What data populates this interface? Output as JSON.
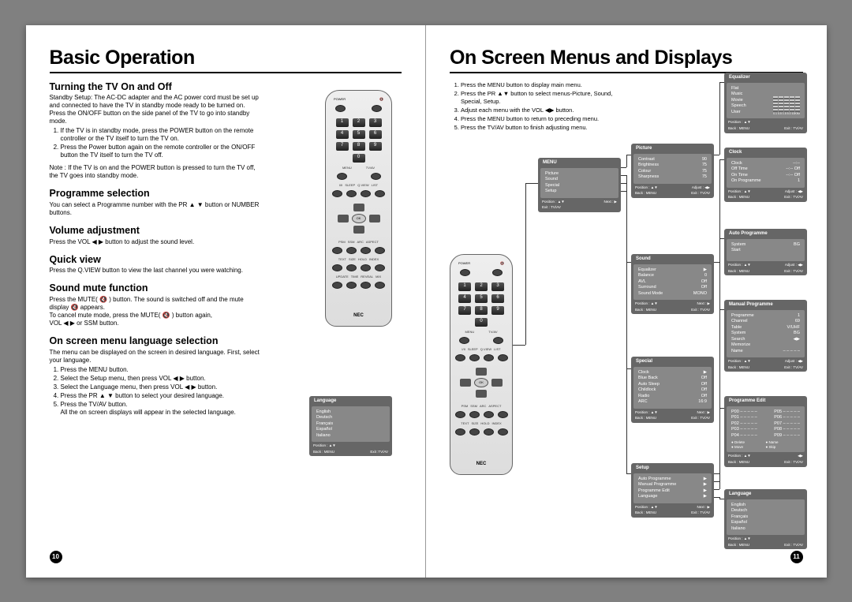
{
  "colors": {
    "osd_bg": "#666666",
    "osd_body": "#888888",
    "bg": "#808080",
    "page": "#ffffff"
  },
  "left": {
    "title": "Basic Operation",
    "pagenum": "10",
    "sections": {
      "turning": {
        "h": "Turning the TV On and Off",
        "intro": "Standby Setup: The AC-DC adapter and the AC power cord must be set up and connected to have the TV in standby mode ready to be turned on. Press the ON/OFF button on the side panel of the TV to go into standby mode.",
        "steps": [
          "If the TV is in standby mode, press the POWER button on the remote controller or the TV itself to turn the TV on.",
          "Press the Power button again on the remote controller or the ON/OFF button the TV itself to turn the TV off."
        ],
        "note": "Note : If the TV is on and the POWER button is pressed to turn the TV off, the TV goes into standby mode."
      },
      "programme": {
        "h": "Programme selection",
        "p": "You can select a Programme number with the PR ▲ ▼ button or NUMBER buttons."
      },
      "volume": {
        "h": "Volume adjustment",
        "p": "Press the VOL ◀ ▶ button to adjust the sound level."
      },
      "quick": {
        "h": "Quick view",
        "p": "Press the Q.VIEW button to view the last channel you were watching."
      },
      "mute": {
        "h": "Sound mute function",
        "p1": "Press the MUTE( 🔇 ) button. The sound is switched off and the mute  display 🔇 appears.",
        "p2": "To cancel mute mode, press the MUTE( 🔇 ) button again,",
        "p3": "VOL ◀ ▶ or SSM button."
      },
      "lang": {
        "h": "On screen menu language selection",
        "intro": "The menu can be displayed on the screen in desired language. First, select your language.",
        "steps": [
          "Press the MENU button.",
          "Select the Setup menu, then press VOL ◀ ▶ button.",
          "Select the Language menu, then press VOL ◀ ▶ button.",
          "Press the PR ▲ ▼ button to select your desired language.",
          "Press the TV/AV button.\nAll the on screen displays will appear in the selected language."
        ]
      }
    },
    "language_box": {
      "title": "Language",
      "items": [
        "English",
        "Deutsch",
        "Français",
        "Español",
        "Italiano"
      ],
      "ftr_l": "Position : ▲▼",
      "ftr_r": "Exit :TV/AV",
      "ftr_bl": "Back : MENU"
    }
  },
  "right": {
    "title": "On Screen Menus and Displays",
    "pagenum": "11",
    "instructions": [
      "Press the MENU button to display main menu.",
      "Press the PR ▲▼ button to select menus-Picture, Sound, Special, Setup.",
      "Adjust each menu with the VOL ◀▶ button.",
      "Press the MENU button to return to preceding menu.",
      "Press the TV/AV button to finish adjusting menu."
    ],
    "menus": {
      "menu": {
        "title": "MENU",
        "rows": [
          [
            "Picture",
            ""
          ],
          [
            "Sound",
            ""
          ],
          [
            "Special",
            ""
          ],
          [
            "Setup",
            ""
          ]
        ],
        "ftr": [
          "Position : ▲▼",
          "Next : ▶",
          "Exit : TV/AV"
        ]
      },
      "picture": {
        "title": "Picture",
        "rows": [
          [
            "Contrast",
            "90"
          ],
          [
            "Brightness",
            "75"
          ],
          [
            "Colour",
            "75"
          ],
          [
            "Sharpness",
            "75"
          ]
        ],
        "ftr": [
          "Position : ▲▼",
          "Adjust : ◀▶",
          "Back : MENU",
          "Exit : TV/AV"
        ]
      },
      "sound": {
        "title": "Sound",
        "rows": [
          [
            "Equalizer",
            "▶"
          ],
          [
            "Balance",
            "0"
          ],
          [
            "AVL",
            "Off"
          ],
          [
            "Surround",
            "Off"
          ],
          [
            "Sound Mode",
            "MONO"
          ]
        ],
        "ftr": [
          "Position : ▲▼",
          "Next : ▶",
          "Back : MENU",
          "Exit : TV/AV"
        ]
      },
      "special": {
        "title": "Special",
        "rows": [
          [
            "Clock",
            "▶"
          ],
          [
            "Blue Back",
            "Off"
          ],
          [
            "Auto Sleep",
            "Off"
          ],
          [
            "Childlock",
            "Off"
          ],
          [
            "Radio",
            "Off"
          ],
          [
            "ARC",
            "16:9"
          ]
        ],
        "ftr": [
          "Position : ▲▼",
          "Next : ▶",
          "Back : MENU",
          "Exit : TV/AV"
        ]
      },
      "setup": {
        "title": "Setup",
        "rows": [
          [
            "Auto Programme",
            "▶"
          ],
          [
            "Manual Programme",
            "▶"
          ],
          [
            "Programme Edit",
            "▶"
          ],
          [
            "Language",
            "▶"
          ]
        ],
        "ftr": [
          "Position : ▲▼",
          "Next : ▶",
          "Back : MENU",
          "Exit : TV/AV"
        ]
      },
      "equalizer": {
        "title": "Equalizer",
        "rows": [
          [
            "Flat",
            ""
          ],
          [
            "Music",
            ""
          ],
          [
            "Movie",
            ""
          ],
          [
            "Speech",
            ""
          ],
          [
            "User",
            ""
          ]
        ],
        "sub": "0.1  0.5  1.5  5.0  10KHz",
        "ftr": [
          "Position : ▲▼",
          "",
          "Back : MENU",
          "Exit : TV/AV"
        ]
      },
      "clock": {
        "title": "Clock",
        "rows": [
          [
            "Clock",
            "--:--"
          ],
          [
            "Off Time",
            "--:--   Off"
          ],
          [
            "On Time",
            "--:--   Off"
          ],
          [
            "On Programme",
            "1"
          ]
        ],
        "ftr": [
          "Position : ▲▼",
          "Adjust : ◀▶",
          "Back : MENU",
          "Exit : TV/AV"
        ]
      },
      "autoprog": {
        "title": "Auto Programme",
        "rows": [
          [
            "System",
            "BG"
          ],
          [
            "Start",
            ""
          ]
        ],
        "ftr": [
          "Position : ▲▼",
          "Adjust : ◀▶",
          "Back : MENU",
          "Exit : TV/AV"
        ]
      },
      "manualprog": {
        "title": "Manual Programme",
        "rows": [
          [
            "Programme",
            "1"
          ],
          [
            "Channel",
            "69"
          ],
          [
            "Table",
            "V/UHF"
          ],
          [
            "System",
            "BG"
          ],
          [
            "Search",
            "◀▶"
          ],
          [
            "Memorize",
            ""
          ],
          [
            "Name",
            "– – – – –"
          ]
        ],
        "ftr": [
          "Position : ▲▼",
          "Adjust : ◀▶",
          "Back : MENU",
          "Exit : TV/AV"
        ]
      },
      "progedit": {
        "title": "Programme Edit",
        "rows": [
          [
            "P00  – – – – –",
            "P05  – – – – –"
          ],
          [
            "P01  – – – – –",
            "P06  – – – – –"
          ],
          [
            "P02  – – – – –",
            "P07  – – – – –"
          ],
          [
            "P03  – – – – –",
            "P08  – – – – –"
          ],
          [
            "P04  – – – – –",
            "P09  – – – – –"
          ]
        ],
        "actions": [
          "● Delete",
          "● Name",
          "● Move",
          "● Skip"
        ],
        "ftr": [
          "Position : ▲▼",
          "◀▶",
          "Back : MENU",
          "Exit : TV/AV"
        ]
      },
      "language": {
        "title": "Language",
        "rows": [
          [
            "English",
            ""
          ],
          [
            "Deutsch",
            ""
          ],
          [
            "Français",
            ""
          ],
          [
            "Español",
            ""
          ],
          [
            "Italiano",
            ""
          ]
        ],
        "ftr": [
          "Position : ▲▼",
          "",
          "Back : MENU",
          "Exit : TV/AV"
        ]
      }
    }
  },
  "remote": {
    "brand": "NEC",
    "top_l": "POWER",
    "top_r": "🔇",
    "menu": "MENU",
    "tvav": "TV/AV",
    "row2": [
      "I/II",
      "SLEEP",
      "Q.VIEW",
      "LIST"
    ],
    "ok": "OK",
    "vol": "VOL",
    "pr": "PR",
    "row3": [
      "PSM",
      "SSM",
      "ARC",
      "ASPECT"
    ],
    "row4": [
      "TEXT",
      "SIZE",
      "HOLD",
      "INDEX"
    ],
    "row5": [
      "UPDATE",
      "TIME",
      "REVEAL",
      "MIX"
    ]
  }
}
